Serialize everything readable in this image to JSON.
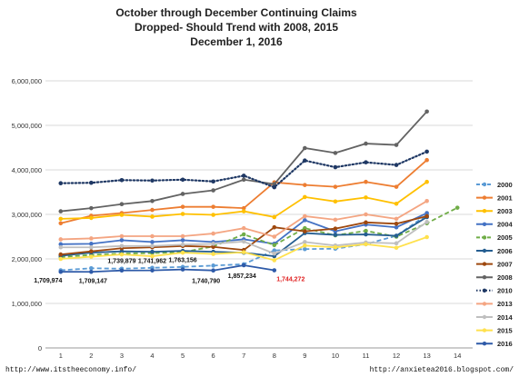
{
  "chart_data": {
    "type": "line",
    "title_lines": [
      "October through December Continuing Claims",
      "Dropped- Should Trend with 2008, 2015",
      "December 1, 2016"
    ],
    "xlabel": "",
    "ylabel": "",
    "x": [
      1,
      2,
      3,
      4,
      5,
      6,
      7,
      8,
      9,
      10,
      11,
      12,
      13,
      14
    ],
    "xlim": [
      0.5,
      14.5
    ],
    "ylim": [
      0,
      6000000
    ],
    "yticks": [
      "0",
      "1,000,000",
      "2,000,000",
      "3,000,000",
      "4,000,000",
      "5,000,000",
      "6,000,000"
    ],
    "ytick_values": [
      0,
      1000000,
      2000000,
      3000000,
      4000000,
      5000000,
      6000000
    ],
    "grid": true,
    "legend_position": "right",
    "series": [
      {
        "name": "2000",
        "color": "#5b9bd5",
        "dash": "dashed",
        "marker": true,
        "values": [
          1745000,
          1790000,
          1780000,
          1800000,
          1820000,
          1850000,
          1880000,
          2190000,
          2220000,
          2230000,
          2330000,
          2520000,
          2990000,
          null
        ]
      },
      {
        "name": "2001",
        "color": "#ed7d31",
        "dash": "solid",
        "marker": true,
        "values": [
          2800000,
          2970000,
          3030000,
          3100000,
          3170000,
          3170000,
          3140000,
          3720000,
          3660000,
          3620000,
          3730000,
          3620000,
          4220000,
          null
        ]
      },
      {
        "name": "2003",
        "color": "#ffc000",
        "dash": "solid",
        "marker": true,
        "values": [
          2900000,
          2920000,
          2990000,
          2950000,
          3010000,
          2990000,
          3070000,
          2940000,
          3390000,
          3290000,
          3380000,
          3240000,
          3730000,
          null
        ]
      },
      {
        "name": "2004",
        "color": "#4472c4",
        "dash": "solid",
        "marker": true,
        "values": [
          2330000,
          2340000,
          2420000,
          2380000,
          2420000,
          2380000,
          2440000,
          2340000,
          2870000,
          2620000,
          2770000,
          2710000,
          3030000,
          null
        ]
      },
      {
        "name": "2005",
        "color": "#70ad47",
        "dash": "dashed",
        "marker": true,
        "values": [
          2040000,
          2090000,
          2120000,
          2130000,
          2150000,
          2280000,
          2550000,
          2310000,
          2690000,
          2530000,
          2630000,
          2500000,
          2800000,
          3150000
        ]
      },
      {
        "name": "2006",
        "color": "#255e91",
        "dash": "solid",
        "marker": true,
        "values": [
          2070000,
          2140000,
          2170000,
          2160000,
          2180000,
          2160000,
          2140000,
          2060000,
          2580000,
          2540000,
          2550000,
          2520000,
          2940000,
          null
        ]
      },
      {
        "name": "2007",
        "color": "#9e480e",
        "dash": "solid",
        "marker": true,
        "values": [
          2100000,
          2170000,
          2240000,
          2260000,
          2290000,
          2270000,
          2200000,
          2710000,
          2620000,
          2680000,
          2820000,
          2790000,
          2960000,
          null
        ]
      },
      {
        "name": "2008",
        "color": "#636363",
        "dash": "solid",
        "marker": true,
        "values": [
          3070000,
          3140000,
          3230000,
          3300000,
          3460000,
          3540000,
          3780000,
          3680000,
          4490000,
          4380000,
          4590000,
          4560000,
          5310000,
          null
        ]
      },
      {
        "name": "2010",
        "color": "#1f3864",
        "dash": "dotted",
        "marker": true,
        "values": [
          3700000,
          3710000,
          3770000,
          3760000,
          3780000,
          3740000,
          3870000,
          3610000,
          4210000,
          4060000,
          4170000,
          4110000,
          4410000,
          null
        ]
      },
      {
        "name": "2013",
        "color": "#f4a582",
        "dash": "solid",
        "marker": true,
        "values": [
          2440000,
          2460000,
          2510000,
          2510000,
          2510000,
          2570000,
          2690000,
          2500000,
          2960000,
          2880000,
          3000000,
          2900000,
          3300000,
          null
        ]
      },
      {
        "name": "2014",
        "color": "#bfbfbf",
        "dash": "solid",
        "marker": true,
        "values": [
          2260000,
          2260000,
          2290000,
          2290000,
          2320000,
          2340000,
          2390000,
          2120000,
          2380000,
          2300000,
          2370000,
          2350000,
          2830000,
          null
        ]
      },
      {
        "name": "2015",
        "color": "#ffe14d",
        "dash": "solid",
        "marker": true,
        "values": [
          2000000,
          2050000,
          2100000,
          2060000,
          2140000,
          2110000,
          2150000,
          1970000,
          2300000,
          2260000,
          2330000,
          2250000,
          2490000,
          null
        ]
      },
      {
        "name": "2016",
        "color": "#2e5aa8",
        "dash": "solid",
        "marker": true,
        "values": [
          1709974,
          1709147,
          1739879,
          1741962,
          1763156,
          1740790,
          1857234,
          1744272,
          null,
          null,
          null,
          null,
          null,
          null
        ]
      }
    ],
    "annotations": [
      {
        "text": "1,709,974",
        "x": 1,
        "color": "#111111"
      },
      {
        "text": "1,709,147",
        "x": 2,
        "color": "#111111"
      },
      {
        "text": "1,739,879",
        "x": 3,
        "color": "#111111"
      },
      {
        "text": "1,741,962",
        "x": 4,
        "color": "#111111"
      },
      {
        "text": "1,763,156",
        "x": 5,
        "color": "#111111"
      },
      {
        "text": "1,740,790",
        "x": 6,
        "color": "#111111"
      },
      {
        "text": "1,857,234",
        "x": 7,
        "color": "#111111"
      },
      {
        "text": "1,744,272",
        "x": 8,
        "color": "#e02020"
      }
    ]
  },
  "footer": {
    "left": "http://www.itstheeconomy.info/",
    "right": "http://anxietea2016.blogspot.com/"
  }
}
